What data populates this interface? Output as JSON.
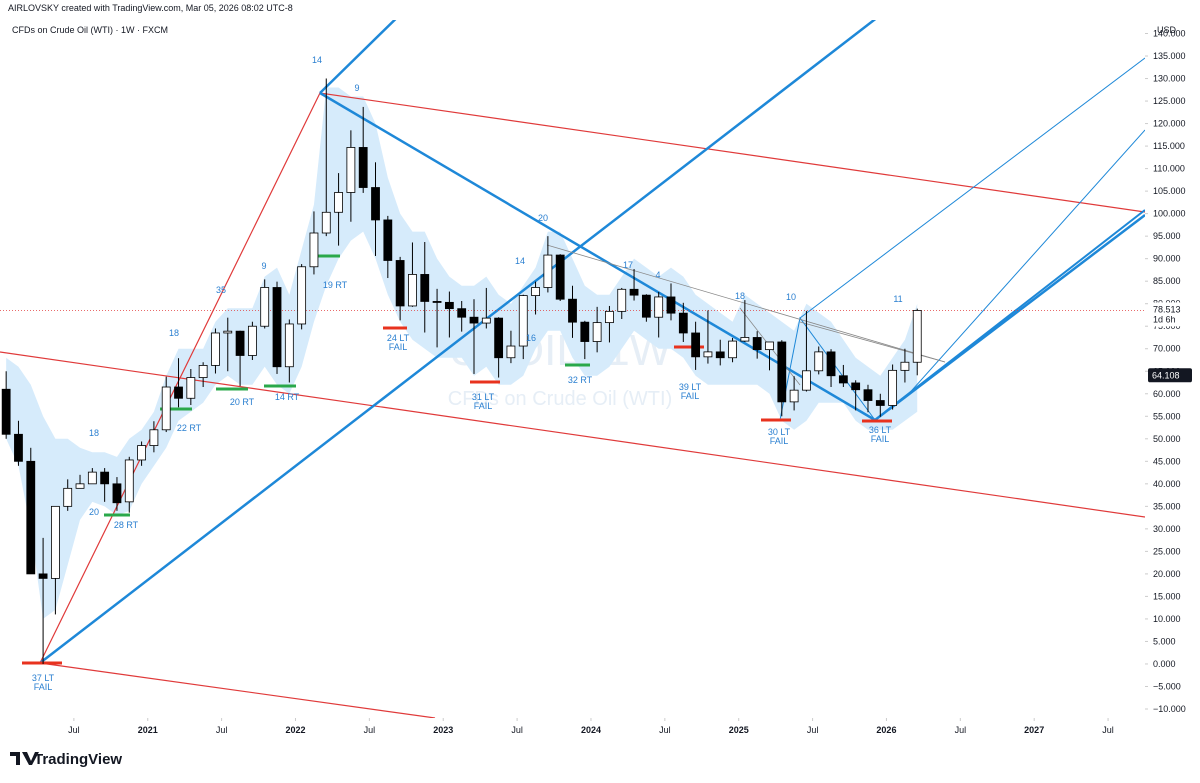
{
  "chart_data": {
    "type": "candlestick",
    "title": "AIRLOVSKY created with TradingView.com, Mar 05, 2026 08:02 UTC-8",
    "subtitle": "CFDs on Crude Oil (WTI) · 1W · FXCM",
    "currency": "USD",
    "watermark_symbol": "USOIL, 1W",
    "watermark_name": "CFDs on Crude Oil (WTI)",
    "brand": "TradingView",
    "x": [
      "2020-01",
      "2020-02",
      "2020-03",
      "2020-04",
      "2020-05",
      "2020-06",
      "2020-07",
      "2020-08",
      "2020-09",
      "2020-10",
      "2020-11",
      "2020-12",
      "2021-01",
      "2021-02",
      "2021-03",
      "2021-04",
      "2021-05",
      "2021-06",
      "2021-07",
      "2021-08",
      "2021-09",
      "2021-10",
      "2021-11",
      "2021-12",
      "2022-01",
      "2022-02",
      "2022-03",
      "2022-04",
      "2022-05",
      "2022-06",
      "2022-07",
      "2022-08",
      "2022-09",
      "2022-10",
      "2022-11",
      "2022-12",
      "2023-01",
      "2023-02",
      "2023-03",
      "2023-04",
      "2023-05",
      "2023-06",
      "2023-07",
      "2023-08",
      "2023-09",
      "2023-10",
      "2023-11",
      "2023-12",
      "2024-01",
      "2024-02",
      "2024-03",
      "2024-04",
      "2024-05",
      "2024-06",
      "2024-07",
      "2024-08",
      "2024-09",
      "2024-10",
      "2024-11",
      "2024-12",
      "2025-01",
      "2025-02",
      "2025-03",
      "2025-04",
      "2025-05",
      "2025-06",
      "2025-07",
      "2025-08",
      "2025-09",
      "2025-10",
      "2025-11",
      "2025-12",
      "2026-01",
      "2026-02",
      "2026-03"
    ],
    "open": [
      61,
      51,
      45,
      20,
      19,
      35,
      39,
      40,
      42.6,
      40,
      36,
      45.3,
      48.5,
      52,
      61.5,
      59,
      63.6,
      66.3,
      73.5,
      73.9,
      68.5,
      75,
      83.6,
      66,
      75.5,
      88.2,
      95.7,
      100.3,
      104.7,
      114.7,
      105.8,
      98.6,
      89.6,
      79.5,
      86.5,
      80.5,
      80.3,
      78.9,
      77,
      75.7,
      76.8,
      68,
      70.6,
      81.8,
      83.6,
      90.8,
      81,
      75.9,
      71.6,
      75.8,
      78.3,
      83.2,
      81.9,
      77,
      81.5,
      77.9,
      73.5,
      68.2,
      69.3,
      68,
      71.7,
      72.5,
      69.8,
      71.5,
      58.2,
      60.8,
      65.1,
      69.3,
      64,
      62.4,
      60.9,
      58.5,
      57.4,
      65.2,
      67
    ],
    "high": [
      65,
      54,
      48,
      28,
      35,
      41,
      42,
      43.5,
      43.5,
      41.5,
      46,
      49.4,
      53.9,
      63.8,
      67.9,
      65.5,
      67,
      74.5,
      76.9,
      74,
      76,
      85.4,
      84.9,
      76.5,
      88.8,
      100.5,
      130,
      109,
      118.5,
      123.7,
      111.4,
      99.5,
      90.4,
      93.6,
      93.7,
      83.3,
      82.7,
      80.6,
      81,
      83.5,
      77,
      74,
      82,
      84.9,
      95,
      91,
      84,
      76.2,
      79.3,
      79.5,
      83.5,
      87.7,
      82.1,
      82.6,
      84.5,
      80.2,
      76,
      78.5,
      72,
      72.4,
      80.8,
      73.9,
      71.5,
      71.9,
      63.9,
      78.4,
      70.5,
      69.9,
      66.4,
      63,
      62,
      60,
      66.5,
      70,
      78.9
    ],
    "low": [
      50,
      44,
      20,
      0,
      11,
      34,
      39,
      40,
      36,
      34,
      33.6,
      44,
      47,
      51.5,
      57,
      57.5,
      61.5,
      64.5,
      65,
      61.7,
      67.5,
      74.5,
      64.4,
      62.5,
      74.3,
      86.5,
      95,
      92.9,
      98.2,
      104.6,
      90.6,
      85.7,
      76.3,
      79.3,
      73.6,
      70.3,
      72.5,
      73.8,
      64.4,
      74.5,
      63.6,
      66.8,
      67.7,
      77.6,
      82.5,
      80.6,
      72.4,
      67.7,
      69.2,
      71.4,
      76.6,
      80.7,
      76,
      72.5,
      76.3,
      71.5,
      65.3,
      66.7,
      66.3,
      67,
      71.5,
      67.8,
      65.2,
      55,
      56.3,
      60.5,
      64.3,
      61.5,
      61.5,
      56.3,
      55.9,
      54.9,
      56.5,
      62.5,
      64.1
    ],
    "close": [
      51,
      45,
      20,
      19,
      35,
      39,
      40,
      42.6,
      40,
      35.8,
      45.3,
      48.5,
      52,
      61.5,
      59,
      63.6,
      66.3,
      73.5,
      73.9,
      68.5,
      75,
      83.6,
      66,
      75.5,
      88.2,
      95.7,
      100.3,
      104.7,
      114.7,
      105.8,
      98.6,
      89.6,
      79.5,
      86.5,
      80.5,
      80.3,
      78.9,
      77,
      75.7,
      76.8,
      68,
      70.6,
      81.8,
      83.6,
      90.8,
      81,
      75.9,
      71.6,
      75.8,
      78.3,
      83.2,
      81.9,
      77,
      81.5,
      77.9,
      73.5,
      68.2,
      69.3,
      68,
      71.7,
      72.5,
      69.8,
      71.5,
      58.2,
      60.8,
      65.1,
      69.3,
      64,
      62.4,
      60.9,
      58.5,
      57.4,
      65.2,
      67,
      78.5
    ],
    "band_upper": [
      68,
      66,
      62,
      55,
      50,
      50,
      48,
      47,
      47,
      46,
      50,
      52,
      56,
      64,
      70,
      70,
      70,
      76,
      79,
      79,
      79,
      86,
      88,
      82,
      92,
      102,
      128,
      128,
      126,
      126,
      120,
      108,
      100,
      96,
      96,
      90,
      86,
      84,
      84,
      86,
      82,
      80,
      84,
      88,
      96,
      96,
      90,
      84,
      82,
      82,
      86,
      90,
      88,
      86,
      88,
      86,
      82,
      80,
      78,
      76,
      82,
      80,
      78,
      76,
      74,
      80,
      78,
      76,
      72,
      68,
      66,
      64,
      68,
      72,
      80
    ],
    "band_lower": [
      50,
      44,
      30,
      10,
      12,
      22,
      32,
      36,
      35,
      33,
      34,
      40,
      44,
      48,
      54,
      56,
      58,
      62,
      64,
      62,
      62,
      66,
      62,
      60,
      66,
      76,
      84,
      90,
      94,
      96,
      90,
      82,
      76,
      72,
      70,
      68,
      68,
      68,
      64,
      66,
      62,
      62,
      64,
      70,
      74,
      74,
      68,
      64,
      64,
      66,
      70,
      74,
      72,
      70,
      70,
      68,
      64,
      62,
      62,
      62,
      62,
      62,
      60,
      54,
      52,
      54,
      58,
      58,
      58,
      54,
      52,
      52,
      52,
      54,
      56
    ],
    "band_color": "#d6ebfb",
    "up_color": "#ffffff",
    "down_color": "#000000",
    "last_price": 78.513,
    "countdown": "1d 6h",
    "price_tag": 64.108,
    "grid": false,
    "ylim": [
      -12,
      143
    ],
    "xlim": [
      "2020-01",
      "2027-10"
    ],
    "yticks": [
      {
        "value": -10,
        "label": "−10.000"
      },
      {
        "value": -5,
        "label": "−5.000"
      },
      {
        "value": 0,
        "label": "0.000"
      },
      {
        "value": 5,
        "label": "5.000"
      },
      {
        "value": 10,
        "label": "10.000"
      },
      {
        "value": 15,
        "label": "15.000"
      },
      {
        "value": 20,
        "label": "20.000"
      },
      {
        "value": 25,
        "label": "25.000"
      },
      {
        "value": 30,
        "label": "30.000"
      },
      {
        "value": 35,
        "label": "35.000"
      },
      {
        "value": 40,
        "label": "40.000"
      },
      {
        "value": 45,
        "label": "45.000"
      },
      {
        "value": 50,
        "label": "50.000"
      },
      {
        "value": 55,
        "label": "55.000"
      },
      {
        "value": 60,
        "label": "60.000"
      },
      {
        "value": 65,
        "label": "65.000"
      },
      {
        "value": 70,
        "label": "70.000"
      },
      {
        "value": 75,
        "label": "75.000"
      },
      {
        "value": 80,
        "label": "80.000"
      },
      {
        "value": 85,
        "label": "85.000"
      },
      {
        "value": 90,
        "label": "90.000"
      },
      {
        "value": 95,
        "label": "95.000"
      },
      {
        "value": 100,
        "label": "100.000"
      },
      {
        "value": 105,
        "label": "105.000"
      },
      {
        "value": 110,
        "label": "110.000"
      },
      {
        "value": 115,
        "label": "115.000"
      },
      {
        "value": 120,
        "label": "120.000"
      },
      {
        "value": 125,
        "label": "125.000"
      },
      {
        "value": 130,
        "label": "130.000"
      },
      {
        "value": 135,
        "label": "135.000"
      },
      {
        "value": 140,
        "label": "140.000"
      }
    ],
    "xticks": [
      {
        "value": "2020-07",
        "label": "Jul"
      },
      {
        "value": "2021-01",
        "label": "2021"
      },
      {
        "value": "2021-07",
        "label": "Jul"
      },
      {
        "value": "2022-01",
        "label": "2022"
      },
      {
        "value": "2022-07",
        "label": "Jul"
      },
      {
        "value": "2023-01",
        "label": "2023"
      },
      {
        "value": "2023-07",
        "label": "Jul"
      },
      {
        "value": "2024-01",
        "label": "2024"
      },
      {
        "value": "2024-07",
        "label": "Jul"
      },
      {
        "value": "2025-01",
        "label": "2025"
      },
      {
        "value": "2025-07",
        "label": "Jul"
      },
      {
        "value": "2026-01",
        "label": "2026"
      },
      {
        "value": "2026-07",
        "label": "Jul"
      },
      {
        "value": "2027-01",
        "label": "2027"
      },
      {
        "value": "2027-07",
        "label": "Jul"
      }
    ],
    "annotations": [
      [
        "14"
      ],
      [
        "9"
      ],
      [
        "20"
      ],
      [
        "14"
      ],
      [
        "17"
      ],
      [
        "4"
      ],
      [
        "18"
      ],
      [
        "10"
      ],
      [
        "11"
      ],
      [
        "9"
      ],
      [
        "35"
      ],
      [
        "18"
      ],
      [
        "18"
      ],
      [
        "20"
      ],
      [
        "28 RT"
      ],
      [
        "22 RT"
      ],
      [
        "20 RT"
      ],
      [
        "14 RT"
      ],
      [
        "19 RT"
      ],
      [
        "24 LT",
        "FAIL"
      ],
      [
        "31 LT",
        "FAIL"
      ],
      [
        "16"
      ],
      [
        "32 RT"
      ],
      [
        "39 LT",
        "FAIL"
      ],
      [
        "30 LT",
        "FAIL"
      ],
      [
        "36 LT",
        "FAIL"
      ],
      [
        "37 LT",
        "FAIL"
      ]
    ]
  }
}
